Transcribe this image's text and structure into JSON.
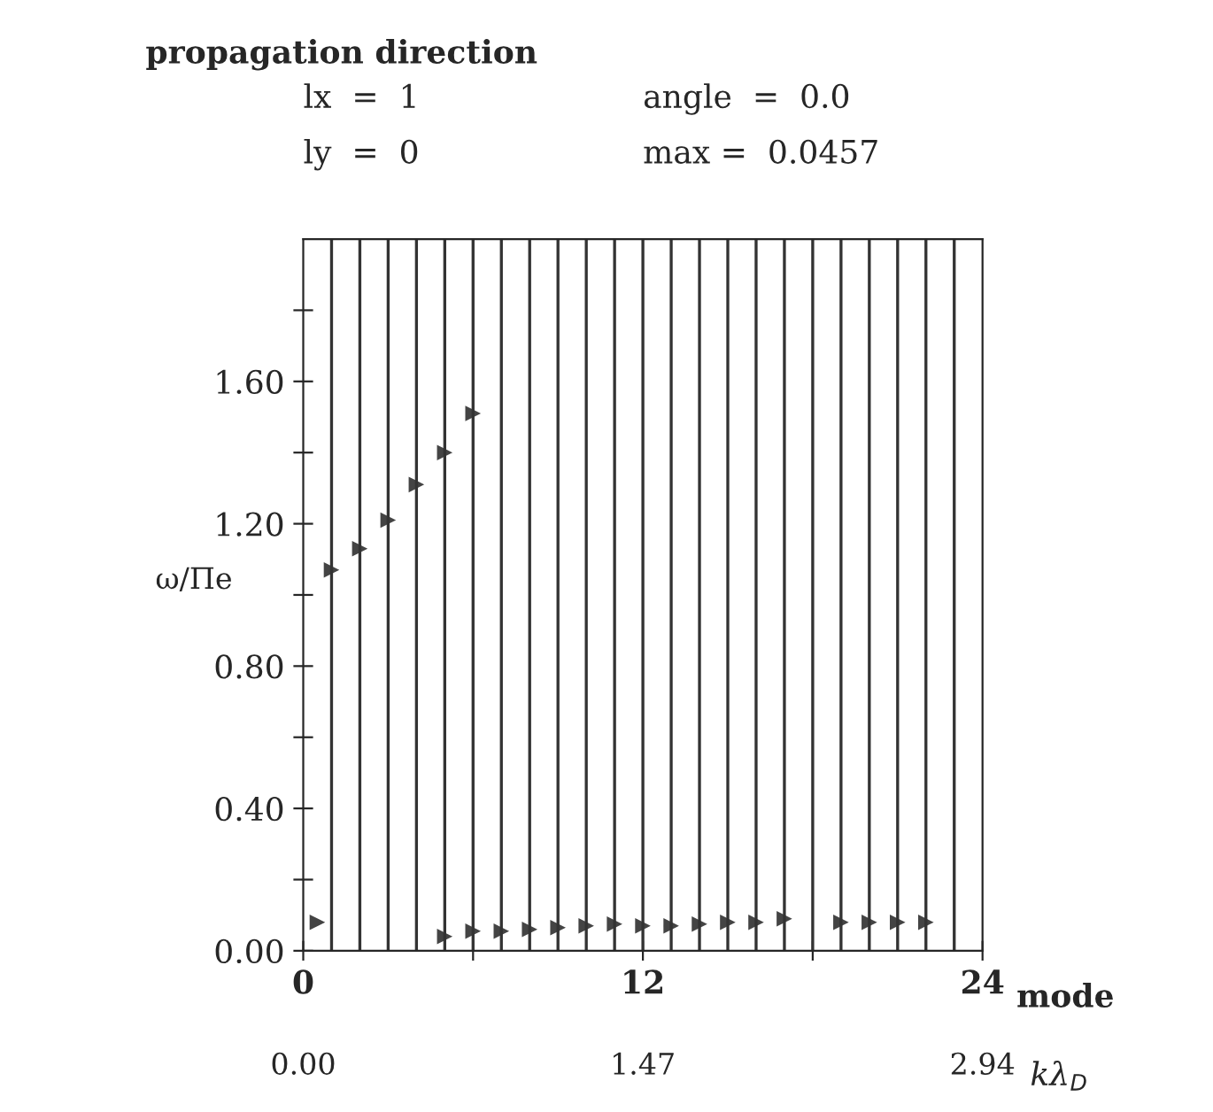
{
  "chart_data": {
    "type": "scatter",
    "title": "propagation direction",
    "annotations": [
      "lx  =  1",
      "angle  =  0.0",
      "ly  =  0",
      "max =  0.0457"
    ],
    "xlabel": "mode",
    "ylabel": "ω/Πe",
    "x2label": "kλ$_{D}$",
    "xlim": [
      0,
      24
    ],
    "xticks": [
      0,
      {
        "value": 6,
        "label": null
      },
      12,
      {
        "value": 18,
        "label": null
      },
      24
    ],
    "x2lim": [
      0,
      2.94
    ],
    "x2ticks": [
      {
        "value": 0,
        "label": "0.00"
      },
      {
        "value": 1.47,
        "label": "1.47"
      },
      {
        "value": 2.94,
        "label": "2.94"
      }
    ],
    "ylim": [
      0,
      2.0
    ],
    "yticks": [
      {
        "value": 0,
        "label": "0.00"
      },
      {
        "value": 0.2,
        "label": null
      },
      {
        "value": 0.4,
        "label": "0.40"
      },
      {
        "value": 0.6,
        "label": null
      },
      {
        "value": 0.8,
        "label": "0.80"
      },
      {
        "value": 1.0,
        "label": null
      },
      {
        "value": 1.2,
        "label": "1.20"
      },
      {
        "value": 1.4,
        "label": null
      },
      {
        "value": 1.6,
        "label": "1.60"
      },
      {
        "value": 1.8,
        "label": null
      }
    ],
    "marker": "triangle",
    "grid": false,
    "legend": false,
    "ref_lines": [
      {
        "axis": "x",
        "value": 1
      },
      {
        "axis": "x",
        "value": 2
      },
      {
        "axis": "x",
        "value": 3
      },
      {
        "axis": "x",
        "value": 4
      },
      {
        "axis": "x",
        "value": 5
      },
      {
        "axis": "x",
        "value": 6
      },
      {
        "axis": "x",
        "value": 7
      },
      {
        "axis": "x",
        "value": 8
      },
      {
        "axis": "x",
        "value": 9
      },
      {
        "axis": "x",
        "value": 10
      },
      {
        "axis": "x",
        "value": 11
      },
      {
        "axis": "x",
        "value": 12
      },
      {
        "axis": "x",
        "value": 13
      },
      {
        "axis": "x",
        "value": 14
      },
      {
        "axis": "x",
        "value": 15
      },
      {
        "axis": "x",
        "value": 16
      },
      {
        "axis": "x",
        "value": 17
      },
      {
        "axis": "x",
        "value": 18
      },
      {
        "axis": "x",
        "value": 19
      },
      {
        "axis": "x",
        "value": 20
      },
      {
        "axis": "x",
        "value": 21
      },
      {
        "axis": "x",
        "value": 22
      },
      {
        "axis": "x",
        "value": 23
      }
    ],
    "series": [
      {
        "color": "#444444",
        "x": [
          0.5,
          1,
          2,
          3,
          4,
          5,
          6,
          5,
          6,
          7,
          8,
          9,
          10,
          11,
          12,
          13,
          14,
          15,
          16,
          17,
          19,
          20,
          21,
          22
        ],
        "values": [
          0.08,
          1.07,
          1.13,
          1.21,
          1.31,
          1.4,
          1.51,
          0.04,
          0.055,
          0.055,
          0.06,
          0.065,
          0.07,
          0.075,
          0.07,
          0.07,
          0.075,
          0.08,
          0.08,
          0.09,
          0.08,
          0.08,
          0.08,
          0.08
        ]
      }
    ]
  }
}
